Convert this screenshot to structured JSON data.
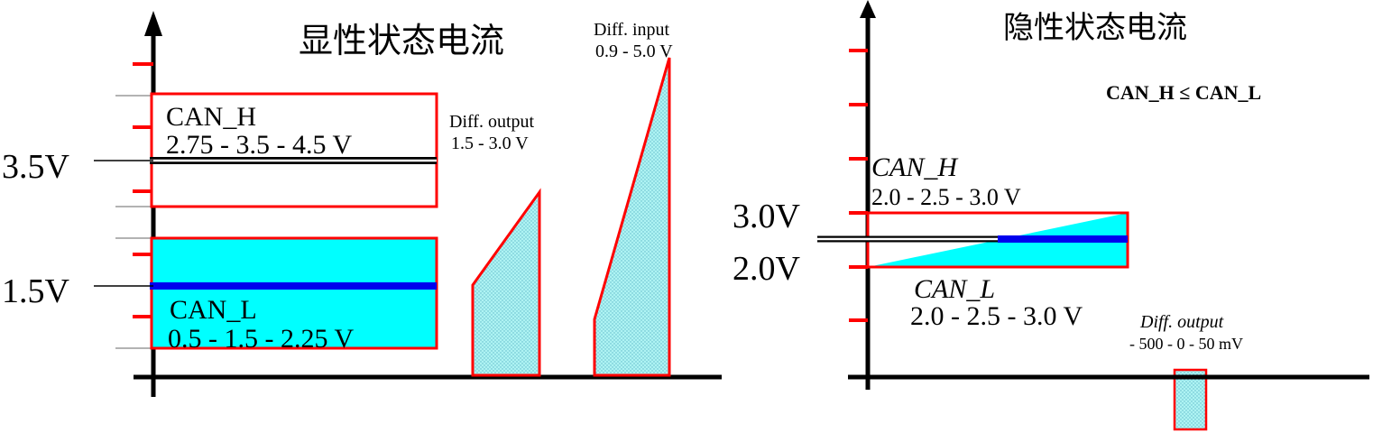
{
  "left": {
    "title": "显性状态电流",
    "can_h": {
      "name": "CAN_H",
      "range": "2.75 - 3.5 - 4.5 V"
    },
    "can_l": {
      "name": "CAN_L",
      "range": "0.5 - 1.5 - 2.25 V"
    },
    "level_high": "3.5V",
    "level_low": "1.5V",
    "diff_output": {
      "label": "Diff.  output",
      "range": "1.5 - 3.0 V"
    },
    "diff_input": {
      "label": "Diff.  input",
      "range": "0.9 - 5.0 V"
    }
  },
  "right": {
    "title": "隐性状态电流",
    "condition": "CAN_H ≤ CAN_L",
    "can_h": {
      "name": "CAN_H",
      "range": "2.0 - 2.5 - 3.0 V"
    },
    "can_l": {
      "name": "CAN_L",
      "range": "2.0 - 2.5 - 3.0 V"
    },
    "level_high": "3.0V",
    "level_low": "2.0V",
    "diff_output": {
      "label": "Diff.  output",
      "range": "- 500 - 0 - 50 mV"
    }
  },
  "colors": {
    "fill": "#00ffff",
    "dotted_fill": "#9feeee",
    "outline": "#ff0000",
    "nominal_line": "#0000ee",
    "axis": "#000000"
  }
}
